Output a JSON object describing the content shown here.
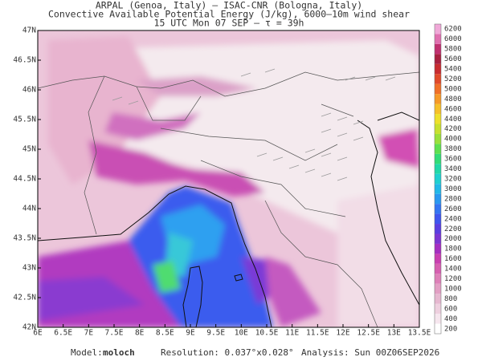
{
  "header": {
    "line1": "ARPAL (Genoa, Italy)  –  ISAC-CNR (Bologna, Italy)",
    "line2": "Convective Available Potential Energy (J/kg), 6000–10m wind shear",
    "line3": "15 UTC Mon 07 SEP  –  τ = 39h"
  },
  "axes": {
    "x_labels": [
      "6E",
      "6.5E",
      "7E",
      "7.5E",
      "8E",
      "8.5E",
      "9E",
      "9.5E",
      "10E",
      "10.5E",
      "11E",
      "11.5E",
      "12E",
      "12.5E",
      "13E",
      "13.5E"
    ],
    "y_labels": [
      "47N",
      "46.5N",
      "46N",
      "45.5N",
      "45N",
      "44.5N",
      "44N",
      "43.5N",
      "43N",
      "42.5N",
      "42N"
    ]
  },
  "colorbar": {
    "levels": [
      200,
      400,
      600,
      800,
      1000,
      1200,
      1400,
      1600,
      1800,
      2000,
      2200,
      2400,
      2600,
      2800,
      3000,
      3200,
      3400,
      3600,
      3800,
      4000,
      4200,
      4400,
      4600,
      4800,
      5000,
      5200,
      5400,
      5600,
      5800,
      6000,
      6200
    ],
    "colors": [
      "#ffffff",
      "#f6e6ee",
      "#eed0df",
      "#e6b8d0",
      "#e29fc4",
      "#dd80b8",
      "#d65fb0",
      "#c93fb0",
      "#a52fc0",
      "#7c35d2",
      "#5a3ee0",
      "#3f55ee",
      "#3475f2",
      "#2a98f0",
      "#22b8e8",
      "#20d0d0",
      "#22d8a8",
      "#33dc78",
      "#5ee050",
      "#9ae03c",
      "#c8e030",
      "#eee02c",
      "#f6c02a",
      "#f69a28",
      "#f07028",
      "#e04a2a",
      "#c82c30",
      "#a82040",
      "#c03070",
      "#e070b0",
      "#f0a8d8"
    ]
  },
  "footer": {
    "model_label": "Model:",
    "model": "moloch",
    "resolution": "Resolution: 0.037°x0.028°",
    "analysis": "Analysis: Sun 00Z06SEP2026"
  }
}
